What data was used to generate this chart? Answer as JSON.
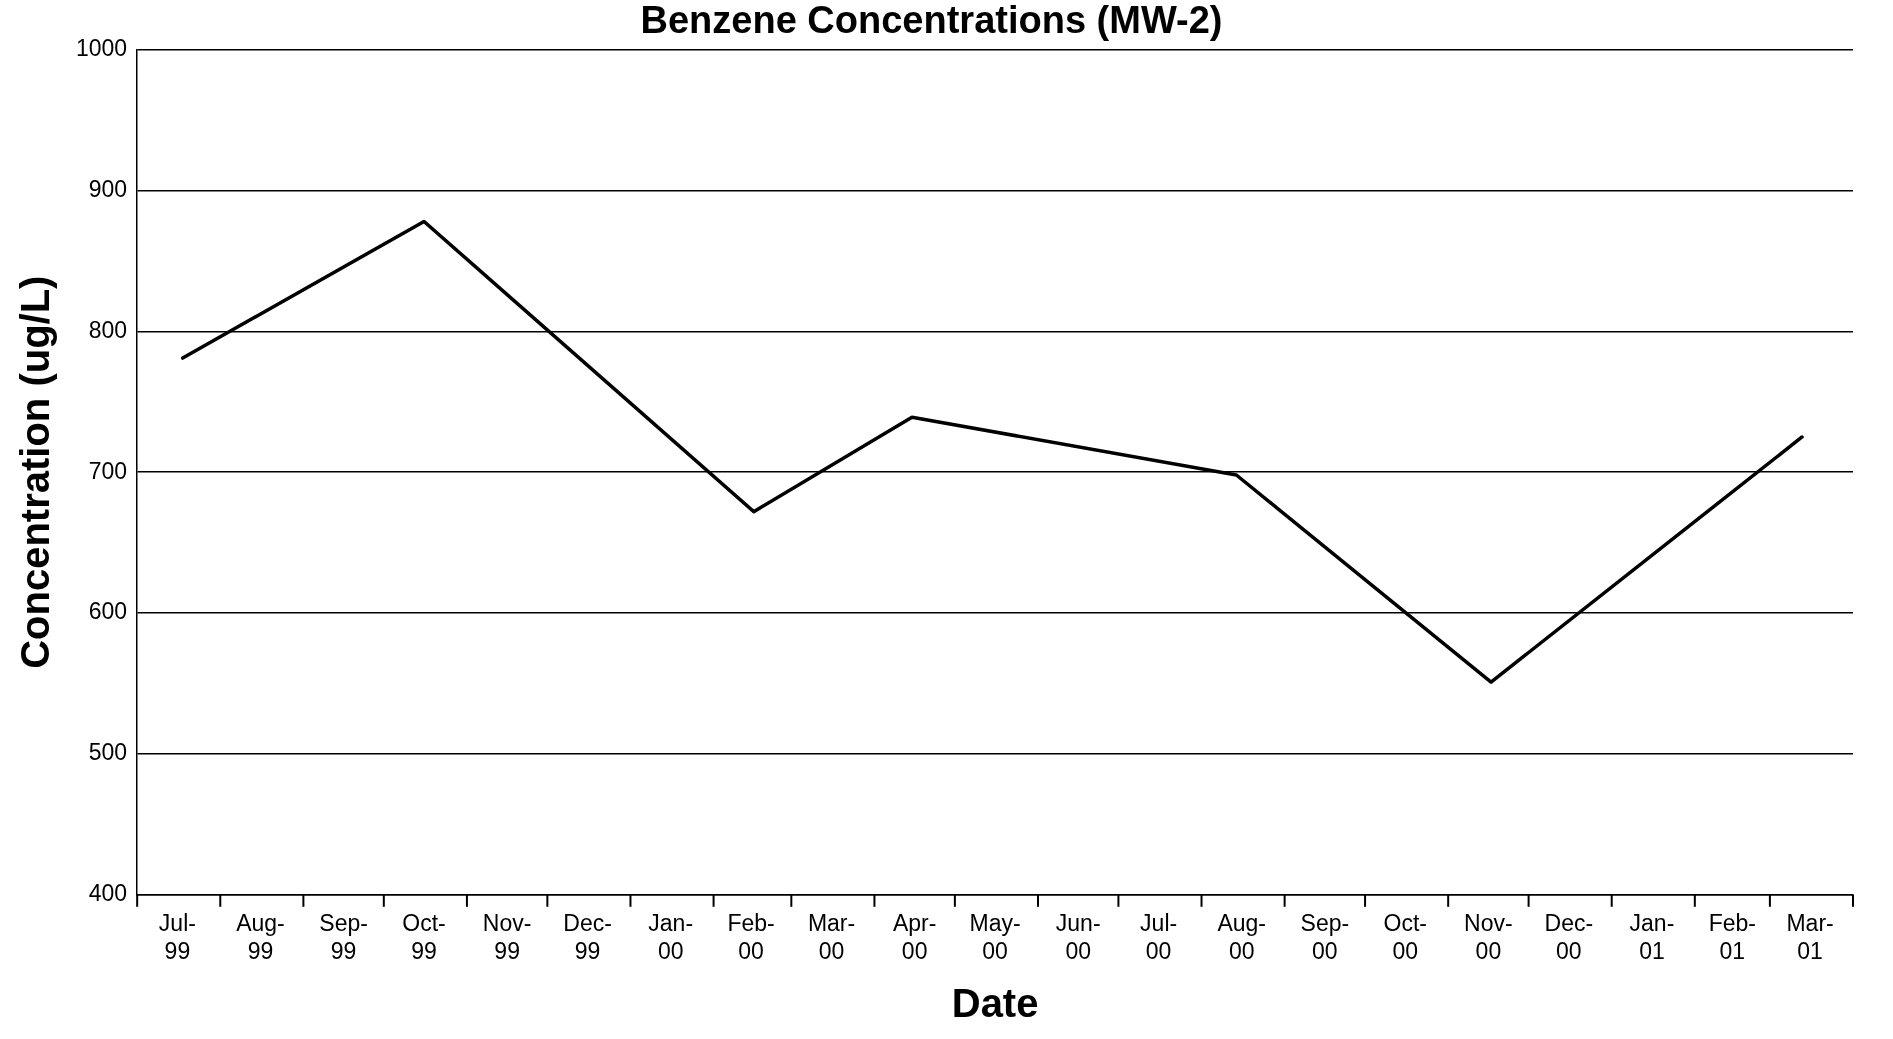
{
  "chart_data": {
    "type": "line",
    "title": "Benzene Concentrations (MW-2)",
    "xlabel": "Date",
    "ylabel": "Concentration (ug/L)",
    "x": [
      "1999-07-18",
      "1999-10-16",
      "2000-02-16",
      "2000-04-15",
      "2000-08-14",
      "2000-11-17",
      "2001-03-13"
    ],
    "series": [
      {
        "color": "#000000",
        "values": [
          781,
          878,
          672,
          739,
          698,
          551,
          725
        ]
      }
    ],
    "xlim": [
      "1999-07-01",
      "2001-04-01"
    ],
    "xticks": [
      {
        "value": "1999-07-01",
        "label": null
      },
      {
        "value": "1999-07-16",
        "label": "Jul-99"
      },
      {
        "value": "1999-08-01",
        "label": null
      },
      {
        "value": "1999-08-16",
        "label": "Aug-99"
      },
      {
        "value": "1999-09-01",
        "label": null
      },
      {
        "value": "1999-09-16",
        "label": "Sep-99"
      },
      {
        "value": "1999-10-01",
        "label": null
      },
      {
        "value": "1999-10-16",
        "label": "Oct-99"
      },
      {
        "value": "1999-11-01",
        "label": null
      },
      {
        "value": "1999-11-16",
        "label": "Nov-99"
      },
      {
        "value": "1999-12-01",
        "label": null
      },
      {
        "value": "1999-12-16",
        "label": "Dec-99"
      },
      {
        "value": "2000-01-01",
        "label": null
      },
      {
        "value": "2000-01-16",
        "label": "Jan-00"
      },
      {
        "value": "2000-02-01",
        "label": null
      },
      {
        "value": "2000-02-15",
        "label": "Feb-00"
      },
      {
        "value": "2000-03-01",
        "label": null
      },
      {
        "value": "2000-03-16",
        "label": "Mar-00"
      },
      {
        "value": "2000-04-01",
        "label": null
      },
      {
        "value": "2000-04-16",
        "label": "Apr-00"
      },
      {
        "value": "2000-05-01",
        "label": null
      },
      {
        "value": "2000-05-16",
        "label": "May-00"
      },
      {
        "value": "2000-06-01",
        "label": null
      },
      {
        "value": "2000-06-16",
        "label": "Jun-00"
      },
      {
        "value": "2000-07-01",
        "label": null
      },
      {
        "value": "2000-07-16",
        "label": "Jul-00"
      },
      {
        "value": "2000-08-01",
        "label": null
      },
      {
        "value": "2000-08-16",
        "label": "Aug-00"
      },
      {
        "value": "2000-09-01",
        "label": null
      },
      {
        "value": "2000-09-16",
        "label": "Sep-00"
      },
      {
        "value": "2000-10-01",
        "label": null
      },
      {
        "value": "2000-10-16",
        "label": "Oct-00"
      },
      {
        "value": "2000-11-01",
        "label": null
      },
      {
        "value": "2000-11-16",
        "label": "Nov-00"
      },
      {
        "value": "2000-12-01",
        "label": null
      },
      {
        "value": "2000-12-16",
        "label": "Dec-00"
      },
      {
        "value": "2001-01-01",
        "label": null
      },
      {
        "value": "2001-01-16",
        "label": "Jan-01"
      },
      {
        "value": "2001-02-01",
        "label": null
      },
      {
        "value": "2001-02-15",
        "label": "Feb-01"
      },
      {
        "value": "2001-03-01",
        "label": null
      },
      {
        "value": "2001-03-16",
        "label": "Mar-01"
      },
      {
        "value": "2001-04-01",
        "label": null
      }
    ],
    "ylim": [
      400,
      1000
    ],
    "yticks": [
      400,
      500,
      600,
      700,
      800,
      900,
      1000
    ],
    "grid": "y",
    "legend": false,
    "marker": "none",
    "line_style": "solid"
  }
}
